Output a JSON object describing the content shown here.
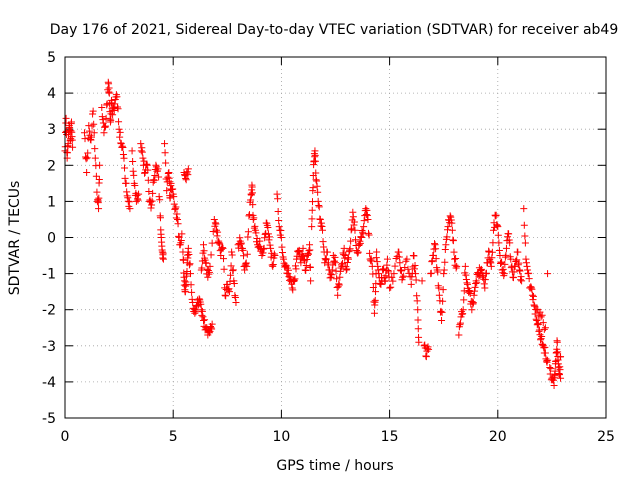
{
  "chart_data": {
    "type": "scatter",
    "title": "Day 176 of 2021, Sidereal Day-to-day VTEC variation (SDTVAR) for receiver ab49",
    "xlabel": "GPS time / hours",
    "ylabel": "SDTVAR / TECUs",
    "xlim": [
      0,
      25
    ],
    "ylim": [
      -5,
      5
    ],
    "xticks": [
      "0",
      "5",
      "10",
      "15",
      "20",
      "25"
    ],
    "yticks": [
      "-5",
      "-4",
      "-3",
      "-2",
      "-1",
      "0",
      "1",
      "2",
      "3",
      "4",
      "5"
    ],
    "grid": true,
    "marker": "+",
    "color": "#ff0000",
    "series": [
      {
        "name": "SDTVAR",
        "points": [
          [
            0.0,
            2.4
          ],
          [
            0.05,
            3.3
          ],
          [
            0.1,
            2.2
          ],
          [
            0.15,
            2.6
          ],
          [
            0.2,
            3.1
          ],
          [
            0.25,
            2.7
          ],
          [
            0.3,
            3.2
          ],
          [
            0.35,
            2.5
          ],
          [
            0.9,
            2.9
          ],
          [
            1.0,
            1.8
          ],
          [
            1.1,
            3.1
          ],
          [
            1.2,
            2.7
          ],
          [
            1.3,
            3.5
          ],
          [
            1.4,
            2.2
          ],
          [
            1.5,
            1.0
          ],
          [
            1.55,
            0.8
          ],
          [
            1.6,
            2.0
          ],
          [
            1.7,
            3.6
          ],
          [
            1.8,
            2.9
          ],
          [
            1.9,
            3.3
          ],
          [
            2.0,
            4.3
          ],
          [
            2.05,
            4.0
          ],
          [
            2.1,
            3.2
          ],
          [
            2.15,
            3.8
          ],
          [
            2.2,
            3.4
          ],
          [
            2.3,
            3.7
          ],
          [
            2.4,
            3.9
          ],
          [
            2.5,
            3.0
          ],
          [
            2.6,
            2.6
          ],
          [
            2.7,
            2.3
          ],
          [
            2.8,
            1.5
          ],
          [
            2.9,
            1.1
          ],
          [
            3.0,
            0.8
          ],
          [
            3.1,
            2.4
          ],
          [
            3.2,
            1.5
          ],
          [
            3.3,
            1.0
          ],
          [
            3.4,
            1.2
          ],
          [
            3.5,
            2.6
          ],
          [
            3.6,
            2.2
          ],
          [
            3.7,
            1.8
          ],
          [
            3.8,
            2.0
          ],
          [
            3.9,
            1.0
          ],
          [
            4.0,
            0.9
          ],
          [
            4.1,
            1.6
          ],
          [
            4.2,
            2.0
          ],
          [
            4.3,
            1.9
          ],
          [
            4.4,
            0.6
          ],
          [
            4.45,
            0.0
          ],
          [
            4.5,
            -0.4
          ],
          [
            4.55,
            -0.6
          ],
          [
            4.6,
            2.6
          ],
          [
            4.7,
            1.3
          ],
          [
            4.8,
            1.8
          ],
          [
            4.85,
            1.1
          ],
          [
            4.9,
            1.5
          ],
          [
            5.0,
            1.2
          ],
          [
            5.1,
            0.8
          ],
          [
            5.2,
            0.5
          ],
          [
            5.3,
            -0.2
          ],
          [
            5.4,
            0.1
          ],
          [
            5.5,
            1.8
          ],
          [
            5.6,
            1.6
          ],
          [
            5.7,
            1.9
          ],
          [
            5.45,
            -0.4
          ],
          [
            5.5,
            -1.1
          ],
          [
            5.55,
            -1.5
          ],
          [
            5.6,
            -1.3
          ],
          [
            5.65,
            -0.7
          ],
          [
            5.7,
            -0.3
          ],
          [
            5.8,
            -1.0
          ],
          [
            5.9,
            -1.8
          ],
          [
            6.0,
            -2.1
          ],
          [
            6.1,
            -1.9
          ],
          [
            6.2,
            -1.7
          ],
          [
            6.3,
            -2.0
          ],
          [
            6.4,
            -2.3
          ],
          [
            6.5,
            -2.5
          ],
          [
            6.6,
            -2.7
          ],
          [
            6.7,
            -2.6
          ],
          [
            6.8,
            -2.4
          ],
          [
            6.3,
            -0.9
          ],
          [
            6.4,
            -0.2
          ],
          [
            6.5,
            -0.7
          ],
          [
            6.6,
            -1.1
          ],
          [
            6.7,
            -0.8
          ],
          [
            6.9,
            0.5
          ],
          [
            7.0,
            0.2
          ],
          [
            7.1,
            -0.1
          ],
          [
            7.2,
            -0.5
          ],
          [
            7.3,
            -0.3
          ],
          [
            7.4,
            -1.6
          ],
          [
            7.5,
            -1.3
          ],
          [
            7.6,
            -1.5
          ],
          [
            7.7,
            -0.4
          ],
          [
            7.8,
            -1.2
          ],
          [
            7.9,
            -1.8
          ],
          [
            8.0,
            -0.2
          ],
          [
            8.1,
            -0.1
          ],
          [
            8.2,
            -0.3
          ],
          [
            8.3,
            -0.9
          ],
          [
            8.4,
            -0.8
          ],
          [
            8.5,
            0.6
          ],
          [
            8.6,
            1.2
          ],
          [
            8.65,
            1.4
          ],
          [
            8.7,
            0.5
          ],
          [
            8.8,
            0.2
          ],
          [
            8.9,
            -0.2
          ],
          [
            9.0,
            -0.1
          ],
          [
            9.1,
            -0.5
          ],
          [
            9.2,
            -0.3
          ],
          [
            9.3,
            0.4
          ],
          [
            9.4,
            0.1
          ],
          [
            9.5,
            -0.3
          ],
          [
            9.6,
            -0.8
          ],
          [
            9.7,
            -0.5
          ],
          [
            9.8,
            1.2
          ],
          [
            9.9,
            0.3
          ],
          [
            10.0,
            0.0
          ],
          [
            10.1,
            -0.6
          ],
          [
            10.2,
            -0.8
          ],
          [
            10.3,
            -1.0
          ],
          [
            10.4,
            -1.1
          ],
          [
            10.5,
            -1.4
          ],
          [
            10.6,
            -1.2
          ],
          [
            10.7,
            -0.6
          ],
          [
            10.8,
            -0.4
          ],
          [
            10.9,
            -0.7
          ],
          [
            11.0,
            -0.3
          ],
          [
            11.1,
            -0.9
          ],
          [
            11.2,
            -0.5
          ],
          [
            11.3,
            -0.2
          ],
          [
            11.35,
            -1.2
          ],
          [
            11.4,
            0.3
          ],
          [
            11.45,
            1.3
          ],
          [
            11.5,
            2.1
          ],
          [
            11.55,
            2.4
          ],
          [
            11.6,
            1.6
          ],
          [
            11.7,
            1.0
          ],
          [
            11.8,
            0.5
          ],
          [
            11.9,
            0.2
          ],
          [
            12.0,
            -0.7
          ],
          [
            12.1,
            -0.4
          ],
          [
            12.2,
            -0.9
          ],
          [
            12.3,
            -1.1
          ],
          [
            12.4,
            -0.5
          ],
          [
            12.5,
            -0.7
          ],
          [
            12.6,
            -1.6
          ],
          [
            12.7,
            -1.1
          ],
          [
            12.8,
            -0.8
          ],
          [
            12.9,
            -0.3
          ],
          [
            13.0,
            -0.9
          ],
          [
            13.1,
            -0.6
          ],
          [
            13.2,
            -0.1
          ],
          [
            13.3,
            0.7
          ],
          [
            13.4,
            0.2
          ],
          [
            13.5,
            -0.4
          ],
          [
            13.6,
            -0.2
          ],
          [
            13.7,
            0.0
          ],
          [
            13.8,
            0.3
          ],
          [
            13.9,
            0.8
          ],
          [
            14.0,
            0.5
          ],
          [
            14.1,
            -0.6
          ],
          [
            14.2,
            -0.8
          ],
          [
            14.3,
            -2.1
          ],
          [
            14.35,
            -1.5
          ],
          [
            14.4,
            -0.4
          ],
          [
            14.5,
            -1.0
          ],
          [
            14.6,
            -1.3
          ],
          [
            14.7,
            -0.9
          ],
          [
            14.8,
            -1.2
          ],
          [
            14.9,
            -0.6
          ],
          [
            15.0,
            -1.4
          ],
          [
            15.2,
            -1.0
          ],
          [
            15.4,
            -0.4
          ],
          [
            15.5,
            -0.9
          ],
          [
            15.6,
            -1.1
          ],
          [
            15.8,
            -0.6
          ],
          [
            16.0,
            -1.3
          ],
          [
            16.1,
            -0.5
          ],
          [
            16.2,
            -1.0
          ],
          [
            16.3,
            -2.0
          ],
          [
            16.35,
            -2.9
          ],
          [
            16.5,
            -1.2
          ],
          [
            16.6,
            -3.0
          ],
          [
            16.7,
            -3.3
          ],
          [
            16.8,
            -3.1
          ],
          [
            16.9,
            -1.0
          ],
          [
            17.0,
            -0.5
          ],
          [
            17.1,
            -0.2
          ],
          [
            17.2,
            -0.9
          ],
          [
            17.3,
            -1.6
          ],
          [
            17.4,
            -2.3
          ],
          [
            17.5,
            -1.0
          ],
          [
            17.6,
            -0.2
          ],
          [
            17.7,
            0.3
          ],
          [
            17.8,
            0.6
          ],
          [
            17.9,
            0.2
          ],
          [
            18.0,
            -0.6
          ],
          [
            18.1,
            -0.8
          ],
          [
            18.2,
            -2.7
          ],
          [
            18.3,
            -2.2
          ],
          [
            18.4,
            -2.0
          ],
          [
            18.5,
            -0.8
          ],
          [
            18.6,
            -1.3
          ],
          [
            18.7,
            -1.5
          ],
          [
            18.8,
            -2.0
          ],
          [
            18.9,
            -1.6
          ],
          [
            19.0,
            -1.2
          ],
          [
            19.1,
            -1.0
          ],
          [
            19.2,
            -0.9
          ],
          [
            19.3,
            -1.1
          ],
          [
            19.4,
            -1.4
          ],
          [
            19.5,
            -0.7
          ],
          [
            19.6,
            -0.4
          ],
          [
            19.7,
            -0.8
          ],
          [
            19.8,
            0.2
          ],
          [
            19.9,
            0.6
          ],
          [
            20.0,
            0.3
          ],
          [
            20.1,
            -0.5
          ],
          [
            20.2,
            -0.9
          ],
          [
            20.3,
            -1.0
          ],
          [
            20.4,
            -0.3
          ],
          [
            20.5,
            0.1
          ],
          [
            20.6,
            -0.6
          ],
          [
            20.7,
            -1.1
          ],
          [
            20.8,
            -0.8
          ],
          [
            20.9,
            -0.4
          ],
          [
            21.0,
            -0.9
          ],
          [
            21.1,
            -1.2
          ],
          [
            21.2,
            0.8
          ],
          [
            21.3,
            -0.6
          ],
          [
            21.4,
            -1.0
          ],
          [
            21.5,
            -1.4
          ],
          [
            21.6,
            -1.6
          ],
          [
            21.7,
            -1.9
          ],
          [
            21.8,
            -2.3
          ],
          [
            21.9,
            -2.6
          ],
          [
            22.0,
            -2.8
          ],
          [
            22.1,
            -3.0
          ],
          [
            22.2,
            -3.2
          ],
          [
            22.3,
            -3.4
          ],
          [
            21.8,
            -2.0
          ],
          [
            22.0,
            -2.2
          ],
          [
            22.2,
            -2.5
          ],
          [
            22.3,
            -1.0
          ],
          [
            22.4,
            -3.6
          ],
          [
            22.5,
            -3.9
          ],
          [
            22.6,
            -4.1
          ],
          [
            22.65,
            -3.7
          ],
          [
            22.7,
            -3.2
          ],
          [
            22.75,
            -2.9
          ],
          [
            22.8,
            -3.5
          ],
          [
            22.85,
            -3.8
          ],
          [
            22.9,
            -3.3
          ],
          [
            22.9,
            -3.9
          ]
        ]
      }
    ]
  }
}
